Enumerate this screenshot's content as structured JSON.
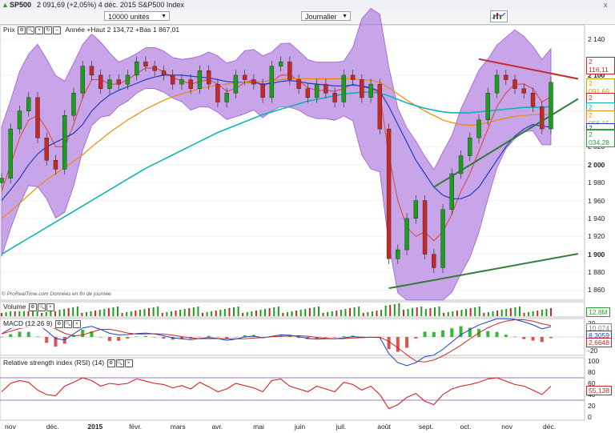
{
  "header": {
    "symbol": "SP500",
    "quote": "2 091,69 (+2,05%) 4 déc. 2015 S&P500 Index",
    "close_label": "x"
  },
  "toolbar": {
    "units_select": "10000 unités",
    "period_select": "Journalier",
    "chart_type_icon": "chart-type-icon"
  },
  "panels": {
    "price_label": "Prix",
    "price_info": "Année +Haut 2 134,72 +Bas 1 867,01",
    "volume_label": "Volume",
    "macd_label": "MACD (12 26 9)",
    "rsi_label": "Relative strength index (RSI) (14)"
  },
  "watermark": "© ProRealTime.com Données en fin de journée",
  "price_axis": {
    "ticks": [
      "2 140",
      "2 100",
      "2 060",
      "2 020",
      "2 000",
      "1 980",
      "1 960",
      "1 940",
      "1 920",
      "1 900",
      "1 880",
      "1 860"
    ],
    "bold_ticks": [
      "2 100",
      "2 000",
      "1 900"
    ],
    "value_labels": [
      {
        "text": "2 116,11",
        "color": "#c62828"
      },
      {
        "text": "2 091,69",
        "color": "#d6a000"
      },
      {
        "text": "2 075,98",
        "color": "#c62828"
      },
      {
        "text": "2 064,76",
        "color": "#12b3b3"
      },
      {
        "text": "2 056,15",
        "color": "#f08a00"
      },
      {
        "text": "2 041,98",
        "color": "#1f3fbf"
      },
      {
        "text": "2 035,86",
        "color": "#6a6adb"
      },
      {
        "text": "2 034,28",
        "color": "#2e9b2e"
      }
    ]
  },
  "volume_axis": {
    "value_label": "12,8M"
  },
  "macd_axis": {
    "ticks": [
      "20",
      "0",
      "-20"
    ],
    "value_labels": [
      {
        "text": "10,074",
        "color": "#888"
      },
      {
        "text": "8,3059",
        "color": "#1f3fbf"
      },
      {
        "text": "2,6648",
        "color": "#c62828"
      }
    ]
  },
  "rsi_axis": {
    "ticks": [
      "100",
      "80",
      "60",
      "40",
      "20",
      "0"
    ],
    "value_label": {
      "text": "55,138",
      "color": "#c62828"
    }
  },
  "x_axis": {
    "labels": [
      "nov",
      "déc.",
      "2015",
      "févr.",
      "mars",
      "avr.",
      "mai",
      "juin",
      "juil.",
      "août",
      "sept.",
      "oct.",
      "nov",
      "déc."
    ],
    "bold": [
      "2015"
    ]
  },
  "chart_data": {
    "type": "line",
    "instrument": "SP500",
    "ylim": [
      1855,
      2150
    ],
    "months": [
      "nov",
      "déc.",
      "2015",
      "févr.",
      "mars",
      "avr.",
      "mai",
      "juin",
      "juil.",
      "août",
      "sept.",
      "oct.",
      "nov",
      "déc."
    ],
    "series": [
      {
        "name": "close",
        "values": [
          1985,
          2040,
          2060,
          2075,
          2030,
          2005,
          1995,
          2055,
          2080,
          2110,
          2100,
          2085,
          2095,
          2090,
          2100,
          2115,
          2110,
          2105,
          2100,
          2090,
          2095,
          2085,
          2105,
          2090,
          2070,
          2080,
          2100,
          2095,
          2090,
          2075,
          2110,
          2115,
          2095,
          2085,
          2075,
          2090,
          2080,
          2070,
          2100,
          2095,
          2075,
          2090,
          2040,
          1895,
          1905,
          1940,
          1960,
          1900,
          1885,
          1950,
          1990,
          2010,
          2030,
          2050,
          2080,
          2100,
          2095,
          2085,
          2080,
          2065,
          2040,
          2092
        ]
      },
      {
        "name": "sma20",
        "values": [
          1970,
          2000,
          2030,
          2050,
          2055,
          2040,
          2020,
          2020,
          2045,
          2075,
          2095,
          2095,
          2090,
          2090,
          2095,
          2102,
          2108,
          2108,
          2104,
          2097,
          2094,
          2090,
          2093,
          2095,
          2090,
          2082,
          2085,
          2092,
          2095,
          2087,
          2093,
          2100,
          2100,
          2094,
          2086,
          2083,
          2083,
          2082,
          2085,
          2090,
          2087,
          2085,
          2080,
          2010,
          1960,
          1930,
          1920,
          1925,
          1915,
          1925,
          1945,
          1970,
          1990,
          2015,
          2040,
          2065,
          2080,
          2090,
          2090,
          2085,
          2070,
          2076
        ]
      },
      {
        "name": "sma50",
        "values": [
          1960,
          1972,
          1985,
          2000,
          2012,
          2020,
          2025,
          2030,
          2035,
          2045,
          2060,
          2070,
          2078,
          2083,
          2087,
          2091,
          2095,
          2098,
          2100,
          2100,
          2100,
          2099,
          2098,
          2097,
          2095,
          2093,
          2092,
          2092,
          2092,
          2090,
          2091,
          2093,
          2094,
          2093,
          2091,
          2090,
          2089,
          2088,
          2088,
          2089,
          2088,
          2086,
          2082,
          2065,
          2045,
          2025,
          2005,
          1990,
          1975,
          1966,
          1962,
          1962,
          1966,
          1975,
          1990,
          2005,
          2020,
          2032,
          2040,
          2045,
          2043,
          2042
        ]
      },
      {
        "name": "sma100",
        "values": [
          1940,
          1948,
          1957,
          1966,
          1975,
          1983,
          1990,
          1997,
          2004,
          2011,
          2020,
          2028,
          2036,
          2043,
          2050,
          2056,
          2062,
          2067,
          2072,
          2076,
          2079,
          2082,
          2085,
          2087,
          2089,
          2090,
          2091,
          2092,
          2093,
          2093,
          2094,
          2095,
          2096,
          2096,
          2096,
          2096,
          2096,
          2096,
          2096,
          2096,
          2095,
          2094,
          2092,
          2086,
          2079,
          2072,
          2066,
          2060,
          2055,
          2050,
          2047,
          2045,
          2044,
          2045,
          2047,
          2050,
          2052,
          2054,
          2055,
          2056,
          2056,
          2056
        ]
      },
      {
        "name": "sma200",
        "values": [
          1900,
          1906,
          1912,
          1918,
          1924,
          1930,
          1936,
          1942,
          1948,
          1954,
          1960,
          1966,
          1972,
          1978,
          1984,
          1990,
          1996,
          2001,
          2006,
          2011,
          2016,
          2021,
          2026,
          2031,
          2036,
          2040,
          2044,
          2048,
          2052,
          2056,
          2059,
          2062,
          2065,
          2068,
          2071,
          2073,
          2075,
          2077,
          2079,
          2080,
          2081,
          2081,
          2080,
          2077,
          2073,
          2069,
          2066,
          2063,
          2061,
          2059,
          2058,
          2058,
          2058,
          2059,
          2060,
          2061,
          2062,
          2063,
          2064,
          2064,
          2064,
          2065
        ]
      }
    ],
    "trendlines": [
      {
        "name": "resistance",
        "color": "#c62828",
        "from": [
          53,
          2118
        ],
        "to": [
          61,
          2102
        ]
      },
      {
        "name": "support-short",
        "color": "#2e7d32",
        "from": [
          48,
          1975
        ],
        "to": [
          61,
          2055
        ]
      },
      {
        "name": "support-long",
        "color": "#2e7d32",
        "from": [
          43,
          1862
        ],
        "to": [
          61,
          1895
        ]
      }
    ],
    "rsi": {
      "ylim": [
        0,
        100
      ],
      "levels": [
        30,
        70
      ],
      "values": [
        45,
        60,
        65,
        62,
        48,
        40,
        38,
        55,
        62,
        70,
        65,
        55,
        60,
        58,
        60,
        68,
        64,
        60,
        58,
        52,
        56,
        50,
        62,
        54,
        45,
        50,
        60,
        56,
        52,
        45,
        65,
        68,
        55,
        50,
        45,
        55,
        50,
        45,
        62,
        58,
        48,
        55,
        40,
        15,
        22,
        35,
        42,
        28,
        22,
        40,
        50,
        55,
        58,
        62,
        68,
        70,
        64,
        58,
        55,
        48,
        40,
        55
      ]
    },
    "macd": {
      "ylim": [
        -25,
        25
      ]
    },
    "legend_values": {
      "sma20": "2 075,98",
      "close": "2 091,69"
    }
  }
}
